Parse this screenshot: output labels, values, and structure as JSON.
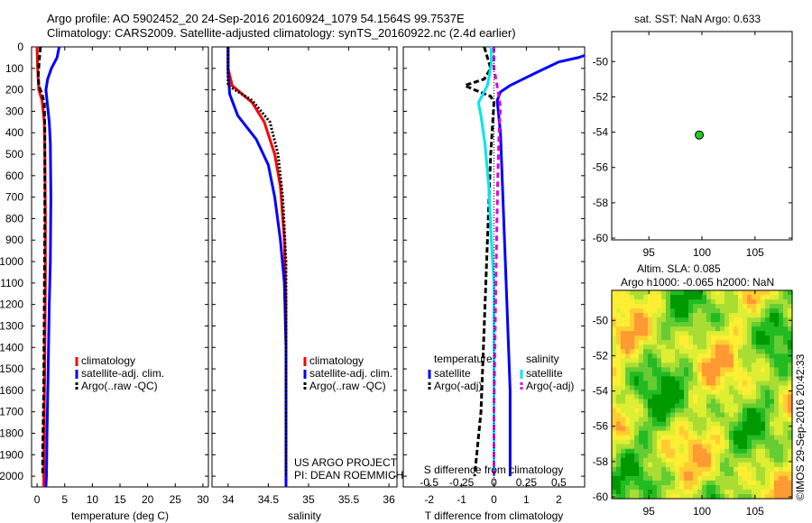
{
  "title_line1": "Argo profile: AO 5902452_20 24-Sep-2016 20160924_1079 54.1564S 99.7537E",
  "title_line2": "Climatology: CARS2009. Satellite-adjusted climatology: synTS_20160922.nc (2.4d earlier)",
  "depth_ticks": [
    "0",
    "100",
    "200",
    "300",
    "400",
    "500",
    "600",
    "700",
    "800",
    "900",
    "1000",
    "1100",
    "1200",
    "1300",
    "1400",
    "1500",
    "1600",
    "1700",
    "1800",
    "1900",
    "2000"
  ],
  "project_credit": {
    "line1": "US ARGO PROJECT",
    "line2": "PI: DEAN ROEMMICH"
  },
  "map_top": {
    "title": "sat. SST: NaN Argo: 0.633"
  },
  "map_bottom": {
    "title_line1": "Altim. SLA: 0.085",
    "title_line2": "Argo h1000: -0.065 h2000: NaN"
  },
  "timestamp": "©IMOS 29-Sep-2016 20:42:33",
  "colors": {
    "climatology": "#ff0000",
    "satellite": "#0000ff",
    "argo": "#000000",
    "sat_salinity": "#00e5ee",
    "argo_salinity": "#e000e0",
    "marker": "#22cc22"
  },
  "chart_data": [
    {
      "type": "line",
      "id": "temperature",
      "xlabel": "temperature (deg C)",
      "ylabel": "depth",
      "xlim": [
        -1,
        31
      ],
      "ylim": [
        0,
        2050
      ],
      "xticks": [
        0,
        5,
        10,
        15,
        20,
        25,
        30
      ],
      "xtick_labels": [
        "0",
        "5",
        "10",
        "15",
        "20",
        "25",
        "30"
      ],
      "legend": [
        "climatology",
        "satellite-adj. clim.",
        "Argo(..raw -QC)"
      ],
      "series": [
        {
          "name": "climatology",
          "color": "#ff0000",
          "dash": "",
          "points": [
            [
              0.0,
              0
            ],
            [
              0.1,
              100
            ],
            [
              0.3,
              200
            ],
            [
              0.9,
              250
            ],
            [
              1.3,
              350
            ],
            [
              1.4,
              500
            ],
            [
              1.5,
              800
            ],
            [
              1.5,
              1100
            ],
            [
              1.4,
              1400
            ],
            [
              1.3,
              1700
            ],
            [
              1.2,
              2000
            ],
            [
              1.2,
              2050
            ]
          ]
        },
        {
          "name": "satellite-adj. clim.",
          "color": "#0000ff",
          "dash": "",
          "points": [
            [
              4.0,
              0
            ],
            [
              3.6,
              50
            ],
            [
              2.6,
              100
            ],
            [
              1.9,
              150
            ],
            [
              1.6,
              200
            ],
            [
              1.8,
              250
            ],
            [
              2.2,
              350
            ],
            [
              2.4,
              450
            ],
            [
              2.5,
              700
            ],
            [
              2.4,
              1000
            ],
            [
              2.2,
              1200
            ],
            [
              2.0,
              1500
            ],
            [
              1.8,
              1800
            ],
            [
              1.7,
              2000
            ],
            [
              1.6,
              2050
            ]
          ]
        },
        {
          "name": "Argo(..raw -QC)",
          "color": "#000000",
          "dash": "6,3",
          "points": [
            [
              0.6,
              0
            ],
            [
              0.4,
              60
            ],
            [
              0.2,
              130
            ],
            [
              0.3,
              180
            ],
            [
              0.9,
              220
            ],
            [
              1.3,
              260
            ],
            [
              1.4,
              400
            ],
            [
              1.4,
              800
            ],
            [
              1.3,
              1200
            ],
            [
              1.2,
              1600
            ],
            [
              1.0,
              1900
            ],
            [
              1.0,
              2000
            ]
          ]
        }
      ]
    },
    {
      "type": "line",
      "id": "salinity",
      "xlabel": "salinity",
      "ylabel": "depth",
      "xlim": [
        33.8,
        36.1
      ],
      "ylim": [
        0,
        2050
      ],
      "xticks": [
        34,
        34.5,
        35,
        35.5,
        36
      ],
      "xtick_labels": [
        "34",
        "34.5",
        "35",
        "35.5",
        "36"
      ],
      "legend": [
        "climatology",
        "satellite-adj. clim.",
        "Argo(..raw -QC)"
      ],
      "series": [
        {
          "name": "climatology",
          "color": "#ff0000",
          "dash": "",
          "points": [
            [
              34.0,
              0
            ],
            [
              34.0,
              100
            ],
            [
              34.05,
              180
            ],
            [
              34.3,
              260
            ],
            [
              34.45,
              350
            ],
            [
              34.58,
              500
            ],
            [
              34.65,
              650
            ],
            [
              34.7,
              900
            ],
            [
              34.72,
              1200
            ],
            [
              34.72,
              1600
            ],
            [
              34.72,
              2050
            ]
          ]
        },
        {
          "name": "satellite-adj. clim.",
          "color": "#0000ff",
          "dash": "",
          "points": [
            [
              34.0,
              0
            ],
            [
              34.0,
              120
            ],
            [
              34.02,
              220
            ],
            [
              34.12,
              320
            ],
            [
              34.35,
              430
            ],
            [
              34.5,
              550
            ],
            [
              34.58,
              700
            ],
            [
              34.65,
              900
            ],
            [
              34.7,
              1100
            ],
            [
              34.72,
              1400
            ],
            [
              34.72,
              1800
            ],
            [
              34.72,
              2050
            ]
          ]
        },
        {
          "name": "Argo(..raw -QC)",
          "color": "#000000",
          "dash": "2,2",
          "points": [
            [
              34.0,
              0
            ],
            [
              34.0,
              100
            ],
            [
              34.0,
              180
            ],
            [
              34.3,
              250
            ],
            [
              34.52,
              350
            ],
            [
              34.62,
              500
            ],
            [
              34.68,
              700
            ],
            [
              34.72,
              1000
            ],
            [
              34.72,
              1500
            ],
            [
              34.72,
              1900
            ],
            [
              34.72,
              2000
            ]
          ]
        }
      ]
    },
    {
      "type": "line",
      "id": "difference",
      "xlabel": "T difference from climatology",
      "xlabel_top": "S difference from climatology",
      "ylabel": "depth",
      "xlim": [
        -2.8,
        2.8
      ],
      "ylim": [
        0,
        2050
      ],
      "xticks": [
        -2,
        -1,
        0,
        1,
        2
      ],
      "xtick_labels": [
        "-2",
        "-1",
        "0",
        "1",
        "2"
      ],
      "sxticks": [
        -0.5,
        -0.25,
        0,
        0.25,
        0.5
      ],
      "sxtick_labels": [
        "-0.5",
        "-0.25",
        "0",
        "0.25",
        "0.5"
      ],
      "slim": [
        -0.7,
        0.7
      ],
      "legend_headers": [
        "temperature",
        "salinity"
      ],
      "legend": [
        "satellite",
        "Argo(-adj)",
        "satellite",
        "Argo(-adj)"
      ],
      "series": [
        {
          "name": "temperature satellite",
          "color": "#0000ff",
          "dash": "",
          "units": "T",
          "points": [
            [
              2.8,
              40
            ],
            [
              2.6,
              50
            ],
            [
              2.0,
              70
            ],
            [
              1.3,
              120
            ],
            [
              0.9,
              150
            ],
            [
              0.5,
              180
            ],
            [
              0.2,
              210
            ],
            [
              0.1,
              250
            ],
            [
              0.2,
              400
            ],
            [
              0.3,
              800
            ],
            [
              0.4,
              1200
            ],
            [
              0.5,
              1600
            ],
            [
              0.5,
              2000
            ]
          ]
        },
        {
          "name": "temperature Argo(-adj)",
          "color": "#000000",
          "dash": "6,3",
          "units": "T",
          "points": [
            [
              -0.3,
              0
            ],
            [
              -0.2,
              50
            ],
            [
              -0.1,
              100
            ],
            [
              -0.3,
              150
            ],
            [
              -0.9,
              180
            ],
            [
              -0.6,
              200
            ],
            [
              -0.1,
              230
            ],
            [
              0.0,
              260
            ],
            [
              -0.1,
              500
            ],
            [
              -0.2,
              900
            ],
            [
              -0.3,
              1300
            ],
            [
              -0.4,
              1700
            ],
            [
              -0.6,
              2000
            ]
          ]
        },
        {
          "name": "salinity satellite",
          "color": "#00e5ee",
          "dash": "",
          "units": "S",
          "points": [
            [
              -0.02,
              0
            ],
            [
              -0.02,
              80
            ],
            [
              -0.05,
              180
            ],
            [
              -0.12,
              260
            ],
            [
              -0.1,
              320
            ],
            [
              -0.07,
              450
            ],
            [
              -0.04,
              650
            ],
            [
              -0.02,
              900
            ],
            [
              0.0,
              1100
            ],
            [
              0.0,
              1500
            ],
            [
              0.0,
              2000
            ]
          ]
        },
        {
          "name": "salinity Argo(-adj)",
          "color": "#e000e0",
          "dash": "6,4",
          "units": "S",
          "points": [
            [
              0.0,
              0
            ],
            [
              0.0,
              100
            ],
            [
              0.03,
              200
            ],
            [
              0.05,
              280
            ],
            [
              0.04,
              400
            ],
            [
              0.03,
              600
            ],
            [
              0.02,
              900
            ],
            [
              0.01,
              1300
            ],
            [
              0.0,
              1700
            ],
            [
              0.0,
              2000
            ]
          ]
        }
      ]
    },
    {
      "type": "scatter",
      "id": "sst-map",
      "title": "sat. SST: NaN Argo: 0.633",
      "xlim": [
        91.5,
        108.5
      ],
      "ylim": [
        -60.1,
        -48.3
      ],
      "xticks": [
        95,
        100,
        105
      ],
      "xtick_labels": [
        "95",
        "100",
        "105"
      ],
      "yticks": [
        -50,
        -52,
        -54,
        -56,
        -58,
        -60
      ],
      "ytick_labels": [
        "-50",
        "-52",
        "-54",
        "-56",
        "-58",
        "-60"
      ],
      "points": [
        [
          99.75,
          -54.16
        ]
      ]
    },
    {
      "type": "heatmap",
      "id": "sla-map",
      "title": "Altim. SLA: 0.085",
      "subtitle": "Argo h1000: -0.065 h2000: NaN",
      "xlim": [
        91.5,
        108.5
      ],
      "ylim": [
        -60.1,
        -48.3
      ],
      "xticks": [
        95,
        100,
        105
      ],
      "xtick_labels": [
        "95",
        "100",
        "105"
      ],
      "yticks": [
        -50,
        -52,
        -54,
        -56,
        -58,
        -60
      ],
      "ytick_labels": [
        "-50",
        "-52",
        "-54",
        "-56",
        "-58",
        "-60"
      ],
      "colormap": [
        "#009900",
        "#22bb22",
        "#66cc33",
        "#aadd33",
        "#ddee33",
        "#ffee33",
        "#ffcc33",
        "#ff9933"
      ],
      "points": [
        [
          99.75,
          -54.16
        ]
      ]
    }
  ]
}
